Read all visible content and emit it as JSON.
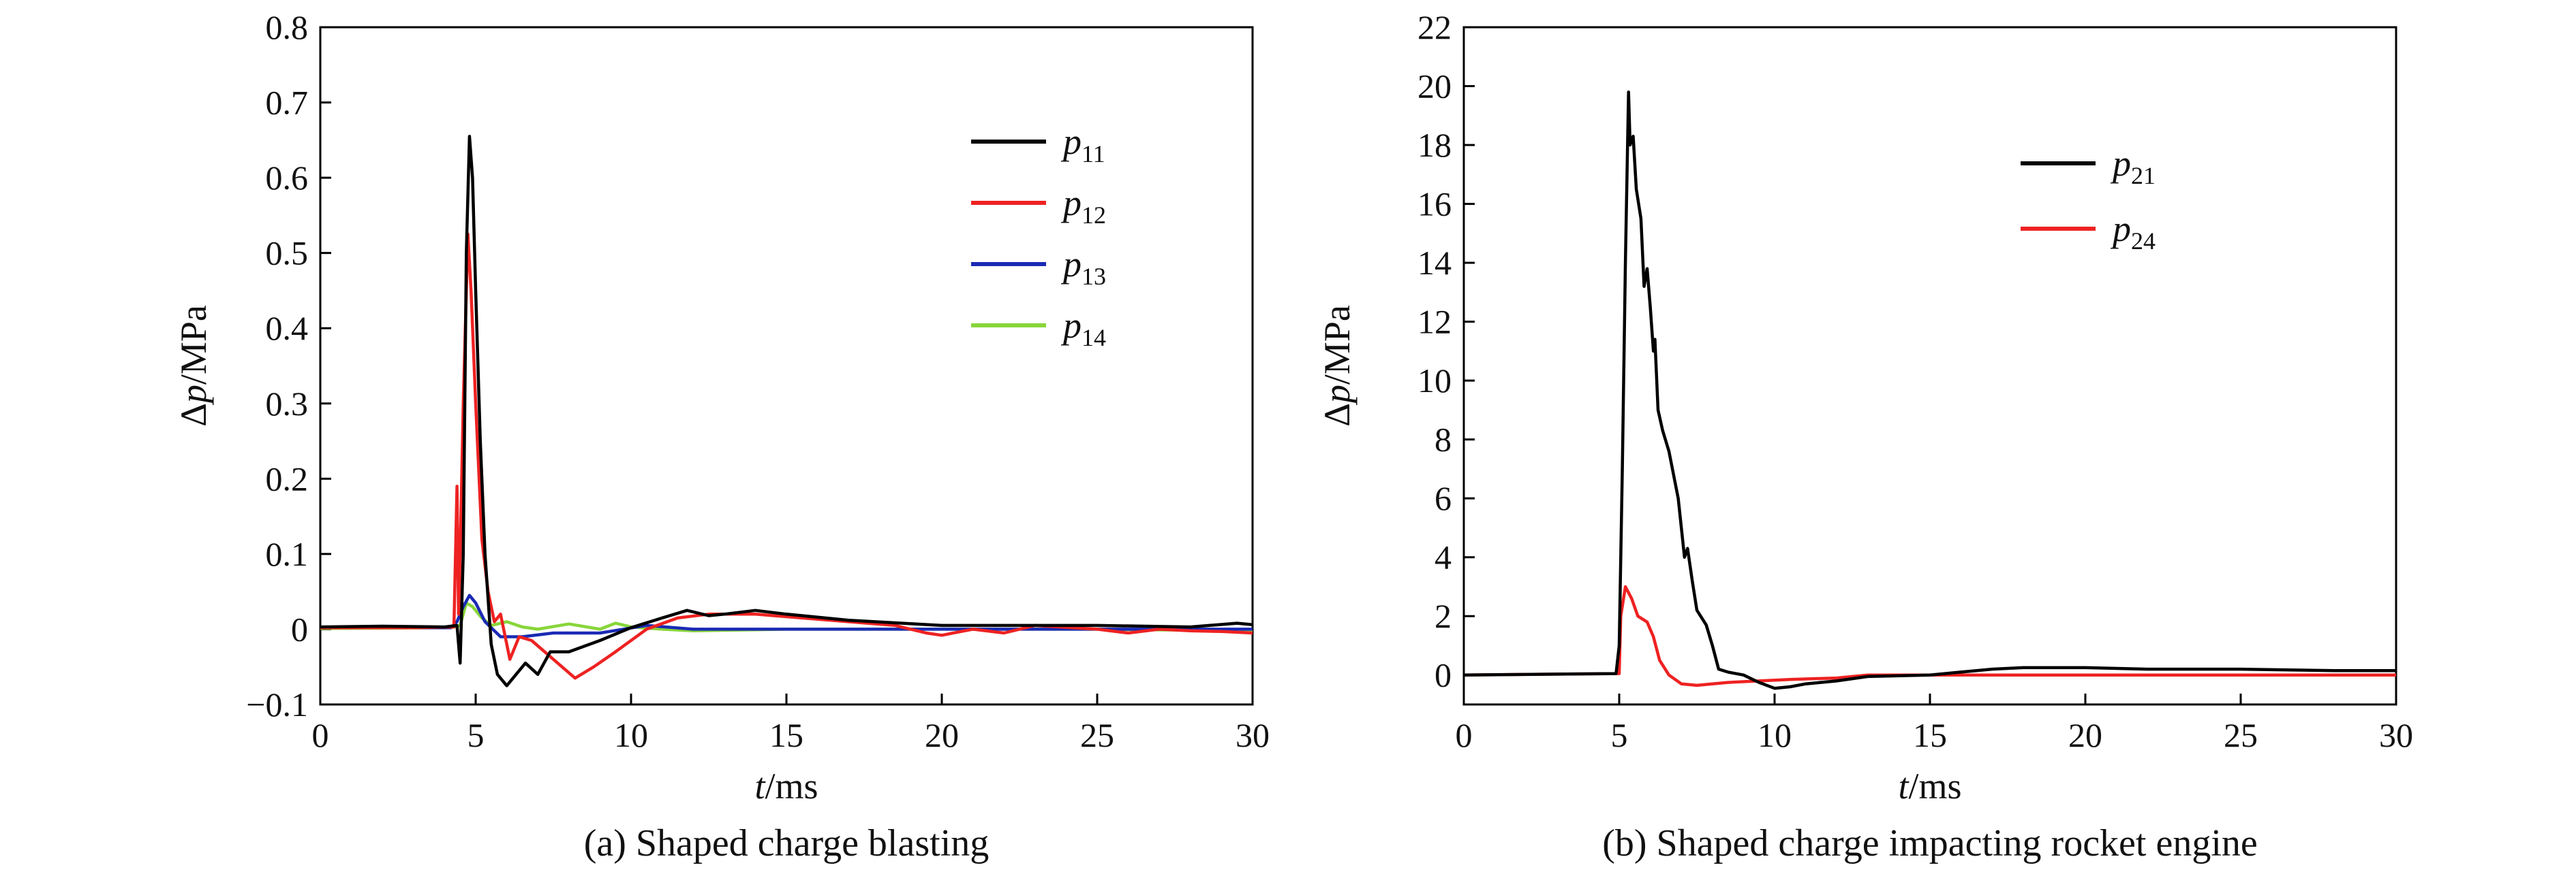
{
  "chart_data": [
    {
      "type": "line",
      "caption": "(a) Shaped charge blasting",
      "xlabel": {
        "italic": "t",
        "rest": "/ms"
      },
      "ylabel": {
        "prefix": "Δ",
        "italic": "p",
        "rest": "/MPa"
      },
      "xlim": [
        0,
        30
      ],
      "ylim": [
        -0.1,
        0.8
      ],
      "xticks": [
        0,
        5,
        10,
        15,
        20,
        25,
        30
      ],
      "xtick_labels": [
        "0",
        "5",
        "10",
        "15",
        "20",
        "25",
        "30"
      ],
      "yticks": [
        -0.1,
        0,
        0.1,
        0.2,
        0.3,
        0.4,
        0.5,
        0.6,
        0.7,
        0.8
      ],
      "ytick_labels": [
        "−0.1",
        "0",
        "0.1",
        "0.2",
        "0.3",
        "0.4",
        "0.5",
        "0.6",
        "0.7",
        "0.8"
      ],
      "grid": false,
      "legend_position": "upper-right",
      "series": [
        {
          "name": "p11",
          "label_main": "p",
          "label_sub": "11",
          "color": "#000000",
          "points": [
            [
              0,
              0.003
            ],
            [
              2,
              0.004
            ],
            [
              4,
              0.003
            ],
            [
              4.4,
              0.005
            ],
            [
              4.5,
              -0.045
            ],
            [
              4.6,
              0.1
            ],
            [
              4.7,
              0.5
            ],
            [
              4.8,
              0.655
            ],
            [
              4.9,
              0.6
            ],
            [
              5,
              0.45
            ],
            [
              5.15,
              0.25
            ],
            [
              5.3,
              0.1
            ],
            [
              5.5,
              -0.02
            ],
            [
              5.7,
              -0.06
            ],
            [
              6,
              -0.075
            ],
            [
              6.3,
              -0.06
            ],
            [
              6.6,
              -0.045
            ],
            [
              7,
              -0.06
            ],
            [
              7.4,
              -0.03
            ],
            [
              8,
              -0.03
            ],
            [
              9,
              -0.015
            ],
            [
              10,
              0.002
            ],
            [
              11,
              0.015
            ],
            [
              11.8,
              0.025
            ],
            [
              12.5,
              0.018
            ],
            [
              13,
              0.02
            ],
            [
              14,
              0.025
            ],
            [
              15,
              0.02
            ],
            [
              17,
              0.012
            ],
            [
              20,
              0.005
            ],
            [
              25,
              0.005
            ],
            [
              28,
              0.003
            ],
            [
              29.5,
              0.008
            ],
            [
              30,
              0.006
            ]
          ]
        },
        {
          "name": "p12",
          "label_main": "p",
          "label_sub": "12",
          "color": "#ee2222",
          "points": [
            [
              0,
              0.002
            ],
            [
              3,
              0.002
            ],
            [
              4.3,
              0.003
            ],
            [
              4.4,
              0.19
            ],
            [
              4.45,
              0.02
            ],
            [
              4.5,
              0.1
            ],
            [
              4.6,
              0.3
            ],
            [
              4.75,
              0.525
            ],
            [
              4.85,
              0.45
            ],
            [
              5,
              0.3
            ],
            [
              5.2,
              0.12
            ],
            [
              5.4,
              0.05
            ],
            [
              5.6,
              0.01
            ],
            [
              5.8,
              0.02
            ],
            [
              6.1,
              -0.04
            ],
            [
              6.4,
              -0.01
            ],
            [
              6.8,
              -0.015
            ],
            [
              7.5,
              -0.04
            ],
            [
              8.2,
              -0.065
            ],
            [
              8.8,
              -0.05
            ],
            [
              9.5,
              -0.03
            ],
            [
              10.5,
              0
            ],
            [
              11.5,
              0.015
            ],
            [
              12.5,
              0.02
            ],
            [
              14,
              0.02
            ],
            [
              15.5,
              0.015
            ],
            [
              17,
              0.01
            ],
            [
              18.5,
              0.005
            ],
            [
              19.5,
              -0.005
            ],
            [
              20,
              -0.008
            ],
            [
              21,
              0
            ],
            [
              22,
              -0.005
            ],
            [
              23,
              0.005
            ],
            [
              25,
              0
            ],
            [
              26,
              -0.005
            ],
            [
              27,
              0
            ],
            [
              28,
              -0.002
            ],
            [
              29,
              -0.003
            ],
            [
              30,
              -0.005
            ]
          ]
        },
        {
          "name": "p13",
          "label_main": "p",
          "label_sub": "13",
          "color": "#1a2ab4",
          "points": [
            [
              0,
              0.002
            ],
            [
              4.2,
              0.002
            ],
            [
              4.4,
              0.01
            ],
            [
              4.6,
              0.03
            ],
            [
              4.8,
              0.045
            ],
            [
              5,
              0.035
            ],
            [
              5.3,
              0.01
            ],
            [
              5.8,
              -0.01
            ],
            [
              6.5,
              -0.01
            ],
            [
              7.5,
              -0.005
            ],
            [
              9,
              -0.005
            ],
            [
              10.5,
              0.005
            ],
            [
              12,
              0
            ],
            [
              15,
              0
            ],
            [
              20,
              0
            ],
            [
              25,
              0
            ],
            [
              30,
              0
            ]
          ]
        },
        {
          "name": "p14",
          "label_main": "p",
          "label_sub": "14",
          "color": "#88d63a",
          "points": [
            [
              0,
              0.001
            ],
            [
              4.2,
              0.002
            ],
            [
              4.5,
              0.005
            ],
            [
              4.7,
              0.035
            ],
            [
              4.9,
              0.03
            ],
            [
              5.2,
              0.015
            ],
            [
              5.5,
              0.005
            ],
            [
              6,
              0.01
            ],
            [
              6.5,
              0.003
            ],
            [
              7,
              0
            ],
            [
              8,
              0.007
            ],
            [
              9,
              0
            ],
            [
              9.5,
              0.008
            ],
            [
              10,
              0.003
            ],
            [
              11,
              0
            ],
            [
              12,
              -0.002
            ],
            [
              15,
              0
            ],
            [
              20,
              0
            ],
            [
              25,
              0
            ],
            [
              30,
              -0.002
            ]
          ]
        }
      ]
    },
    {
      "type": "line",
      "caption": "(b) Shaped charge impacting rocket engine",
      "xlabel": {
        "italic": "t",
        "rest": "/ms"
      },
      "ylabel": {
        "prefix": "Δ",
        "italic": "p",
        "rest": "/MPa"
      },
      "xlim": [
        0,
        30
      ],
      "ylim": [
        -1,
        22
      ],
      "xticks": [
        0,
        5,
        10,
        15,
        20,
        25,
        30
      ],
      "xtick_labels": [
        "0",
        "5",
        "10",
        "15",
        "20",
        "25",
        "30"
      ],
      "yticks": [
        0,
        2,
        4,
        6,
        8,
        10,
        12,
        14,
        16,
        18,
        20,
        22
      ],
      "ytick_labels": [
        "0",
        "2",
        "4",
        "6",
        "8",
        "10",
        "12",
        "14",
        "16",
        "18",
        "20",
        "22"
      ],
      "grid": false,
      "legend_position": "upper-right",
      "series": [
        {
          "name": "p21",
          "label_main": "p",
          "label_sub": "21",
          "color": "#000000",
          "points": [
            [
              0,
              0
            ],
            [
              4.9,
              0.05
            ],
            [
              5,
              1
            ],
            [
              5.1,
              7
            ],
            [
              5.2,
              14
            ],
            [
              5.3,
              19.8
            ],
            [
              5.35,
              18
            ],
            [
              5.45,
              18.3
            ],
            [
              5.55,
              16.5
            ],
            [
              5.7,
              15.5
            ],
            [
              5.8,
              13.2
            ],
            [
              5.9,
              13.8
            ],
            [
              6,
              12.5
            ],
            [
              6.1,
              11
            ],
            [
              6.15,
              11.4
            ],
            [
              6.25,
              9
            ],
            [
              6.4,
              8.3
            ],
            [
              6.6,
              7.6
            ],
            [
              6.9,
              6
            ],
            [
              7,
              5
            ],
            [
              7.1,
              4
            ],
            [
              7.2,
              4.3
            ],
            [
              7.35,
              3.2
            ],
            [
              7.5,
              2.2
            ],
            [
              7.8,
              1.7
            ],
            [
              8,
              1
            ],
            [
              8.2,
              0.2
            ],
            [
              8.5,
              0.1
            ],
            [
              9,
              0
            ],
            [
              9.5,
              -0.25
            ],
            [
              10,
              -0.45
            ],
            [
              10.5,
              -0.4
            ],
            [
              11,
              -0.3
            ],
            [
              12,
              -0.2
            ],
            [
              13,
              -0.05
            ],
            [
              15,
              0
            ],
            [
              16,
              0.1
            ],
            [
              17,
              0.2
            ],
            [
              18,
              0.25
            ],
            [
              20,
              0.25
            ],
            [
              22,
              0.2
            ],
            [
              25,
              0.2
            ],
            [
              28,
              0.15
            ],
            [
              30,
              0.15
            ]
          ]
        },
        {
          "name": "p24",
          "label_main": "p",
          "label_sub": "24",
          "color": "#ee2222",
          "points": [
            [
              0,
              0
            ],
            [
              5,
              0.05
            ],
            [
              5.05,
              2
            ],
            [
              5.2,
              3
            ],
            [
              5.4,
              2.6
            ],
            [
              5.6,
              2
            ],
            [
              5.9,
              1.8
            ],
            [
              6.1,
              1.3
            ],
            [
              6.3,
              0.5
            ],
            [
              6.6,
              0
            ],
            [
              7,
              -0.3
            ],
            [
              7.5,
              -0.35
            ],
            [
              8.5,
              -0.25
            ],
            [
              9.5,
              -0.2
            ],
            [
              10.5,
              -0.15
            ],
            [
              12,
              -0.1
            ],
            [
              13,
              0
            ],
            [
              16,
              0
            ],
            [
              20,
              0
            ],
            [
              25,
              0
            ],
            [
              30,
              0
            ]
          ]
        }
      ]
    }
  ]
}
